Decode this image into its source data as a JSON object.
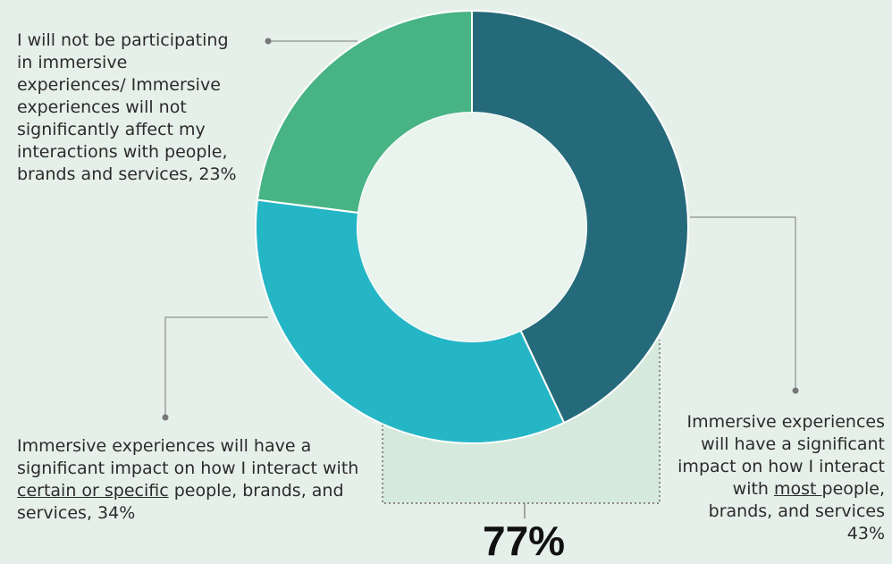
{
  "chart_data": {
    "type": "pie",
    "donut": true,
    "slices": [
      {
        "label": "Immersive experiences will have a significant impact on how I interact with most people, brands, and services",
        "value": 43,
        "color": "#256a7a"
      },
      {
        "label": "Immersive experiences will have a significant impact on how I interact with certain or specific people, brands, and services",
        "value": 34,
        "color": "#25b6c6"
      },
      {
        "label": "I will not be participating in immersive experiences/ Immersive experiences will not significantly affect my interactions with people, brands and services",
        "value": 23,
        "color": "#48b384"
      }
    ],
    "combined_total": "77%"
  },
  "labels": {
    "slice_23": {
      "text": "I will not be participating in immersive experiences/ Immersive experiences will not significantly affect my interactions with people, brands and services, 23%"
    },
    "slice_34": {
      "pre": "Immersive experiences will have a significant impact on how I interact with ",
      "underlined": "certain or specific",
      "post": " people, brands, and services, 34%"
    },
    "slice_43": {
      "pre": "Immersive experiences will have a significant impact on how I interact with ",
      "underlined": "most ",
      "post": "people, brands, and services 43%"
    }
  },
  "colors": {
    "background": "#e6f0ea",
    "bracket_fill": "#d5e9dc",
    "leader": "#777777",
    "center": "#eaf4ef"
  }
}
